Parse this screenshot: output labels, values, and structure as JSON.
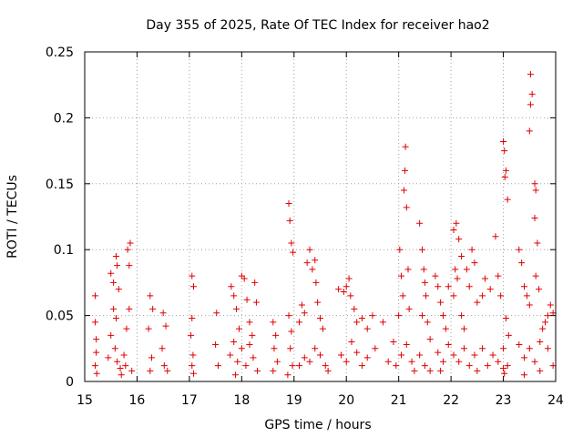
{
  "chart_data": {
    "type": "scatter",
    "title": "Day 355 of 2025, Rate Of TEC Index for receiver hao2",
    "xlabel": "GPS time / hours",
    "ylabel": "ROTI / TECUs",
    "xlim": [
      15,
      24
    ],
    "ylim": [
      0,
      0.25
    ],
    "xticks": [
      "15",
      "16",
      "17",
      "18",
      "19",
      "20",
      "21",
      "22",
      "23",
      "24"
    ],
    "yticks": [
      "0",
      "0.05",
      "0.1",
      "0.15",
      "0.2",
      "0.25"
    ],
    "grid": true,
    "marker": "+",
    "color": "#e00000",
    "series": [
      {
        "points": [
          [
            15.2,
            0.065
          ],
          [
            15.2,
            0.045
          ],
          [
            15.22,
            0.032
          ],
          [
            15.22,
            0.022
          ],
          [
            15.2,
            0.012
          ],
          [
            15.23,
            0.006
          ],
          [
            15.5,
            0.082
          ],
          [
            15.55,
            0.075
          ],
          [
            15.6,
            0.095
          ],
          [
            15.62,
            0.088
          ],
          [
            15.65,
            0.07
          ],
          [
            15.55,
            0.055
          ],
          [
            15.6,
            0.048
          ],
          [
            15.5,
            0.035
          ],
          [
            15.58,
            0.025
          ],
          [
            15.62,
            0.015
          ],
          [
            15.68,
            0.01
          ],
          [
            15.75,
            0.02
          ],
          [
            15.8,
            0.04
          ],
          [
            15.85,
            0.055
          ],
          [
            15.82,
            0.1
          ],
          [
            15.87,
            0.105
          ],
          [
            15.85,
            0.088
          ],
          [
            15.78,
            0.012
          ],
          [
            15.9,
            0.008
          ],
          [
            15.7,
            0.005
          ],
          [
            15.45,
            0.018
          ],
          [
            16.25,
            0.065
          ],
          [
            16.3,
            0.055
          ],
          [
            16.22,
            0.04
          ],
          [
            16.28,
            0.018
          ],
          [
            16.25,
            0.008
          ],
          [
            16.5,
            0.052
          ],
          [
            16.55,
            0.042
          ],
          [
            16.48,
            0.025
          ],
          [
            16.52,
            0.012
          ],
          [
            16.58,
            0.008
          ],
          [
            17.05,
            0.08
          ],
          [
            17.08,
            0.072
          ],
          [
            17.05,
            0.048
          ],
          [
            17.03,
            0.035
          ],
          [
            17.07,
            0.02
          ],
          [
            17.05,
            0.012
          ],
          [
            17.08,
            0.006
          ],
          [
            17.5,
            0.028
          ],
          [
            17.55,
            0.012
          ],
          [
            17.52,
            0.052
          ],
          [
            17.8,
            0.072
          ],
          [
            17.85,
            0.065
          ],
          [
            17.9,
            0.055
          ],
          [
            17.95,
            0.04
          ],
          [
            18.0,
            0.08
          ],
          [
            18.05,
            0.078
          ],
          [
            18.1,
            0.062
          ],
          [
            18.15,
            0.045
          ],
          [
            18.2,
            0.035
          ],
          [
            18.25,
            0.075
          ],
          [
            18.28,
            0.06
          ],
          [
            17.78,
            0.02
          ],
          [
            17.85,
            0.03
          ],
          [
            17.92,
            0.015
          ],
          [
            18.0,
            0.025
          ],
          [
            18.08,
            0.012
          ],
          [
            18.15,
            0.028
          ],
          [
            18.22,
            0.018
          ],
          [
            18.3,
            0.008
          ],
          [
            17.88,
            0.005
          ],
          [
            18.6,
            0.045
          ],
          [
            18.65,
            0.035
          ],
          [
            18.62,
            0.025
          ],
          [
            18.68,
            0.015
          ],
          [
            18.6,
            0.008
          ],
          [
            18.9,
            0.135
          ],
          [
            18.92,
            0.122
          ],
          [
            18.95,
            0.105
          ],
          [
            18.98,
            0.098
          ],
          [
            18.9,
            0.05
          ],
          [
            18.95,
            0.038
          ],
          [
            18.93,
            0.025
          ],
          [
            18.97,
            0.012
          ],
          [
            18.88,
            0.005
          ],
          [
            19.1,
            0.045
          ],
          [
            19.15,
            0.058
          ],
          [
            19.2,
            0.052
          ],
          [
            19.25,
            0.09
          ],
          [
            19.3,
            0.1
          ],
          [
            19.35,
            0.085
          ],
          [
            19.4,
            0.092
          ],
          [
            19.42,
            0.075
          ],
          [
            19.45,
            0.06
          ],
          [
            19.5,
            0.048
          ],
          [
            19.55,
            0.04
          ],
          [
            19.1,
            0.012
          ],
          [
            19.2,
            0.018
          ],
          [
            19.3,
            0.015
          ],
          [
            19.4,
            0.025
          ],
          [
            19.5,
            0.02
          ],
          [
            19.6,
            0.012
          ],
          [
            19.65,
            0.008
          ],
          [
            19.85,
            0.07
          ],
          [
            19.95,
            0.068
          ],
          [
            20.0,
            0.072
          ],
          [
            20.05,
            0.078
          ],
          [
            20.08,
            0.065
          ],
          [
            20.15,
            0.055
          ],
          [
            20.2,
            0.045
          ],
          [
            20.3,
            0.048
          ],
          [
            20.4,
            0.04
          ],
          [
            20.5,
            0.05
          ],
          [
            19.9,
            0.02
          ],
          [
            20.0,
            0.015
          ],
          [
            20.1,
            0.03
          ],
          [
            20.2,
            0.022
          ],
          [
            20.3,
            0.012
          ],
          [
            20.4,
            0.018
          ],
          [
            20.55,
            0.025
          ],
          [
            20.7,
            0.045
          ],
          [
            20.8,
            0.015
          ],
          [
            20.9,
            0.03
          ],
          [
            21.0,
            0.05
          ],
          [
            21.02,
            0.1
          ],
          [
            21.05,
            0.08
          ],
          [
            21.08,
            0.065
          ],
          [
            21.1,
            0.145
          ],
          [
            21.12,
            0.16
          ],
          [
            21.13,
            0.178
          ],
          [
            21.15,
            0.132
          ],
          [
            21.18,
            0.085
          ],
          [
            21.2,
            0.055
          ],
          [
            20.95,
            0.012
          ],
          [
            21.05,
            0.02
          ],
          [
            21.15,
            0.028
          ],
          [
            21.25,
            0.015
          ],
          [
            21.3,
            0.008
          ],
          [
            21.4,
            0.12
          ],
          [
            21.45,
            0.1
          ],
          [
            21.48,
            0.085
          ],
          [
            21.5,
            0.075
          ],
          [
            21.52,
            0.065
          ],
          [
            21.45,
            0.05
          ],
          [
            21.55,
            0.045
          ],
          [
            21.6,
            0.032
          ],
          [
            21.4,
            0.02
          ],
          [
            21.5,
            0.012
          ],
          [
            21.6,
            0.008
          ],
          [
            21.7,
            0.08
          ],
          [
            21.75,
            0.072
          ],
          [
            21.8,
            0.06
          ],
          [
            21.85,
            0.05
          ],
          [
            21.9,
            0.04
          ],
          [
            21.95,
            0.072
          ],
          [
            21.75,
            0.022
          ],
          [
            21.85,
            0.015
          ],
          [
            21.95,
            0.028
          ],
          [
            21.8,
            0.008
          ],
          [
            22.05,
            0.115
          ],
          [
            22.1,
            0.12
          ],
          [
            22.15,
            0.108
          ],
          [
            22.2,
            0.095
          ],
          [
            22.08,
            0.085
          ],
          [
            22.12,
            0.078
          ],
          [
            22.05,
            0.065
          ],
          [
            22.2,
            0.05
          ],
          [
            22.25,
            0.04
          ],
          [
            22.3,
            0.085
          ],
          [
            22.35,
            0.072
          ],
          [
            22.4,
            0.1
          ],
          [
            22.45,
            0.09
          ],
          [
            22.5,
            0.06
          ],
          [
            22.05,
            0.02
          ],
          [
            22.15,
            0.015
          ],
          [
            22.25,
            0.025
          ],
          [
            22.35,
            0.012
          ],
          [
            22.45,
            0.02
          ],
          [
            22.5,
            0.008
          ],
          [
            22.6,
            0.065
          ],
          [
            22.65,
            0.078
          ],
          [
            22.75,
            0.07
          ],
          [
            22.85,
            0.11
          ],
          [
            22.9,
            0.08
          ],
          [
            22.95,
            0.065
          ],
          [
            22.6,
            0.025
          ],
          [
            22.7,
            0.012
          ],
          [
            22.8,
            0.02
          ],
          [
            22.9,
            0.015
          ],
          [
            23.0,
            0.01
          ],
          [
            23.0,
            0.182
          ],
          [
            23.02,
            0.175
          ],
          [
            23.05,
            0.16
          ],
          [
            23.03,
            0.155
          ],
          [
            23.08,
            0.138
          ],
          [
            23.05,
            0.048
          ],
          [
            23.1,
            0.035
          ],
          [
            23.0,
            0.025
          ],
          [
            23.08,
            0.012
          ],
          [
            23.02,
            0.006
          ],
          [
            23.3,
            0.1
          ],
          [
            23.35,
            0.09
          ],
          [
            23.4,
            0.072
          ],
          [
            23.45,
            0.065
          ],
          [
            23.5,
            0.058
          ],
          [
            23.52,
            0.233
          ],
          [
            23.55,
            0.218
          ],
          [
            23.52,
            0.21
          ],
          [
            23.5,
            0.19
          ],
          [
            23.6,
            0.15
          ],
          [
            23.62,
            0.145
          ],
          [
            23.6,
            0.124
          ],
          [
            23.65,
            0.105
          ],
          [
            23.62,
            0.08
          ],
          [
            23.68,
            0.07
          ],
          [
            23.3,
            0.028
          ],
          [
            23.4,
            0.018
          ],
          [
            23.5,
            0.025
          ],
          [
            23.6,
            0.015
          ],
          [
            23.7,
            0.03
          ],
          [
            23.75,
            0.04
          ],
          [
            23.8,
            0.045
          ],
          [
            23.85,
            0.05
          ],
          [
            23.9,
            0.058
          ],
          [
            23.95,
            0.052
          ],
          [
            23.85,
            0.025
          ],
          [
            23.95,
            0.012
          ],
          [
            23.7,
            0.008
          ],
          [
            23.4,
            0.005
          ]
        ]
      }
    ]
  }
}
